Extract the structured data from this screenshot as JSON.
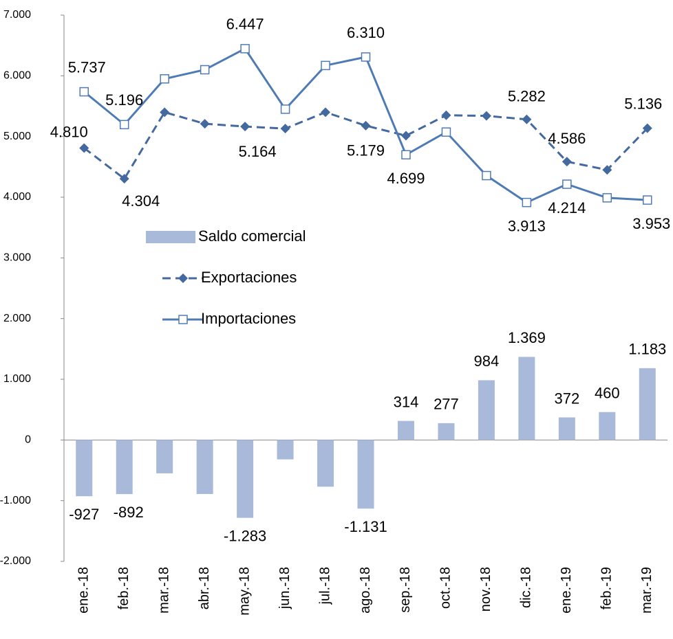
{
  "chart_data": {
    "type": "bar_line",
    "categories": [
      "ene.-18",
      "feb.-18",
      "mar.-18",
      "abr.-18",
      "may.-18",
      "jun.-18",
      "jul.-18",
      "ago.-18",
      "sep.-18",
      "oct.-18",
      "nov.-18",
      "dic.-18",
      "ene.-19",
      "feb.-19",
      "mar.-19"
    ],
    "series": [
      {
        "name": "Saldo comercial",
        "type": "bar",
        "color": "#a9b9da",
        "values": [
          -927,
          -892,
          -550,
          -890,
          -1283,
          -320,
          -770,
          -1131,
          314,
          277,
          984,
          1369,
          372,
          460,
          1183
        ],
        "value_labels": [
          "-927",
          "-892",
          null,
          null,
          "-1.283",
          null,
          null,
          "-1.131",
          "314",
          "277",
          "984",
          "1.369",
          "372",
          "460",
          "1.183"
        ]
      },
      {
        "name": "Exportaciones",
        "type": "line",
        "dashed": true,
        "marker": "diamond",
        "color": "#44699e",
        "values": [
          4810,
          4304,
          5400,
          5210,
          5164,
          5130,
          5400,
          5179,
          5013,
          5350,
          5340,
          5282,
          4586,
          4450,
          5136
        ],
        "value_labels": [
          "4.810",
          "4.304",
          null,
          null,
          "5.164",
          null,
          null,
          "5.179",
          null,
          null,
          null,
          "5.282",
          "4.586",
          null,
          "5.136"
        ]
      },
      {
        "name": "Importaciones",
        "type": "line",
        "dashed": false,
        "marker": "square",
        "color": "#4f7bb5",
        "values": [
          5737,
          5196,
          5950,
          6100,
          6447,
          5450,
          6170,
          6310,
          4699,
          5073,
          4356,
          3913,
          4214,
          3990,
          3953
        ],
        "value_labels": [
          "5.737",
          "5.196",
          null,
          null,
          "6.447",
          null,
          null,
          "6.310",
          "4.699",
          null,
          null,
          "3.913",
          "4.214",
          null,
          "3.953"
        ]
      }
    ],
    "ylim": [
      -2000,
      7000
    ],
    "yticks": [
      {
        "value": -2000,
        "label": "-2.000"
      },
      {
        "value": -1000,
        "label": "-1.000"
      },
      0,
      {
        "value": 1000,
        "label": "1.000"
      },
      {
        "value": 2000,
        "label": "2.000"
      },
      {
        "value": 3000,
        "label": "3.000"
      },
      {
        "value": 4000,
        "label": "4.000"
      },
      {
        "value": 5000,
        "label": "5.000"
      },
      {
        "value": 6000,
        "label": "6.000"
      },
      {
        "value": 7000,
        "label": "7.000"
      }
    ],
    "grid": false
  }
}
